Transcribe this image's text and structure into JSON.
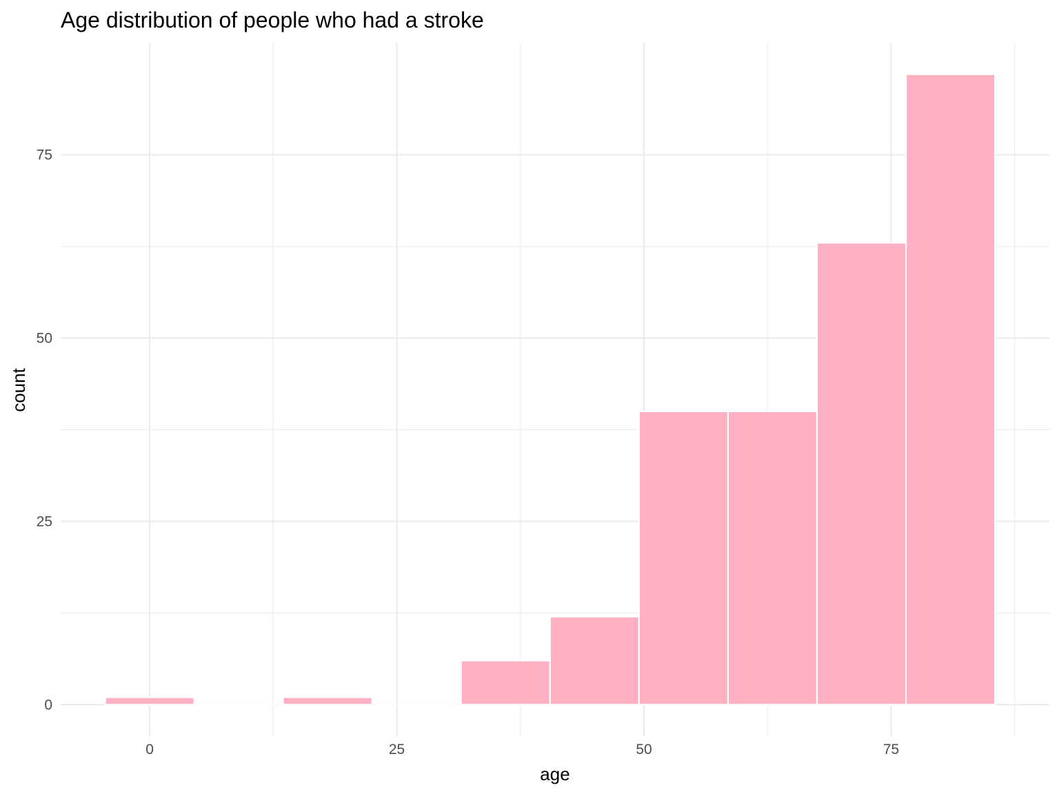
{
  "chart_data": {
    "type": "bar",
    "subtype": "histogram",
    "title": "Age distribution of people who had a stroke",
    "xlabel": "age",
    "ylabel": "count",
    "bin_width": 9,
    "bins": [
      {
        "center": 0,
        "count": 1
      },
      {
        "center": 9,
        "count": 0
      },
      {
        "center": 18,
        "count": 1
      },
      {
        "center": 27,
        "count": 0
      },
      {
        "center": 36,
        "count": 6
      },
      {
        "center": 45,
        "count": 12
      },
      {
        "center": 54,
        "count": 40
      },
      {
        "center": 63,
        "count": 40
      },
      {
        "center": 72,
        "count": 63
      },
      {
        "center": 81,
        "count": 86
      }
    ],
    "xlim": [
      -9,
      91
    ],
    "ylim": [
      -4.3,
      90.3
    ],
    "x_ticks": [
      0,
      25,
      50,
      75
    ],
    "x_tick_labels": [
      "0",
      "25",
      "50",
      "75"
    ],
    "y_ticks": [
      0,
      25,
      50,
      75
    ],
    "y_tick_labels": [
      "0",
      "25",
      "50",
      "75"
    ],
    "x_minor_ticks": [
      12.5,
      37.5,
      62.5,
      87.5
    ],
    "y_minor_ticks": [
      12.5,
      37.5,
      62.5
    ],
    "fill_color": "#fcb0c2",
    "edge_color": "#ffffff",
    "grid_color": "#ebebeb",
    "grid": true,
    "legend": "none"
  }
}
